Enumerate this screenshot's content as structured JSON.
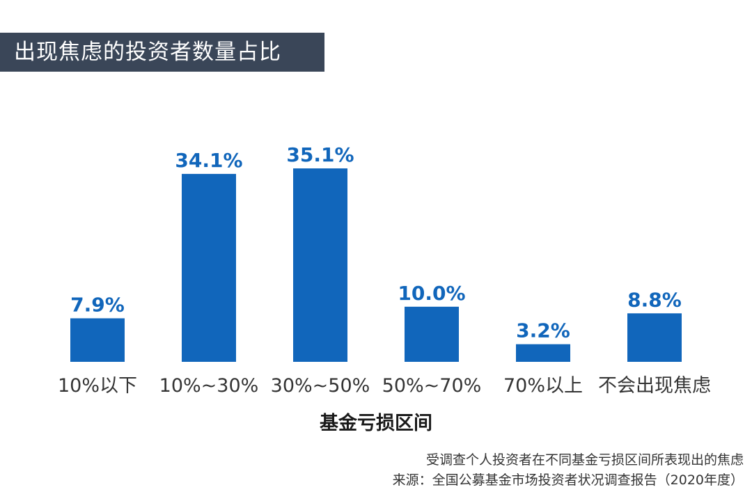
{
  "chart_data": {
    "type": "bar",
    "title": "出现焦虑的投资者数量占比",
    "xlabel": "基金亏损区间",
    "ylabel": "",
    "categories": [
      "10%以下",
      "10%~30%",
      "30%~50%",
      "50%~70%",
      "70%以上",
      "不会出现焦虑"
    ],
    "values": [
      7.9,
      34.1,
      35.1,
      10.0,
      3.2,
      8.8
    ],
    "value_labels": [
      "7.9%",
      "34.1%",
      "35.1%",
      "10.0%",
      "3.2%",
      "8.8%"
    ],
    "ylim": [
      0,
      35.1
    ],
    "grid": false,
    "bar_color": "#1166bb"
  },
  "notes": {
    "line1": "受调查个人投资者在不同基金亏损区间所表现出的焦虑",
    "line2": "来源：全国公募基金市场投资者状况调查报告（2020年度）"
  },
  "colors": {
    "banner": "#3a4658",
    "accent": "#1166bb"
  }
}
